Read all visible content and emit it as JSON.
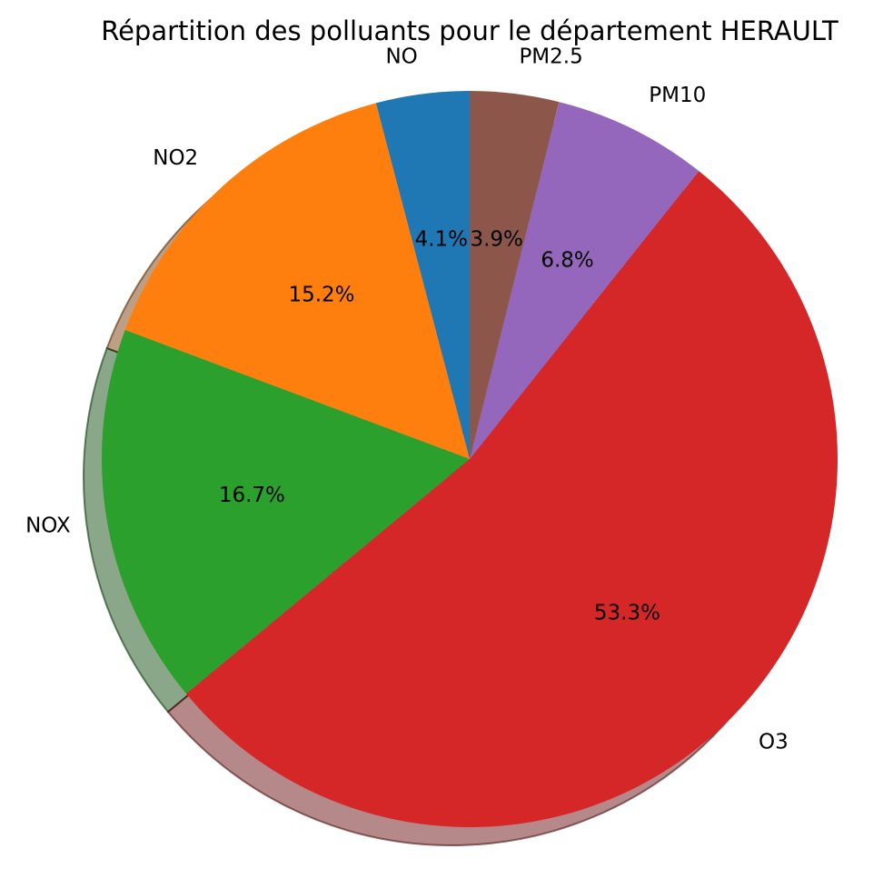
{
  "chart_data": {
    "type": "pie",
    "title": "Répartition des polluants pour le département HERAULT",
    "categories": [
      "NO",
      "NO2",
      "NOX",
      "O3",
      "PM10",
      "PM2.5"
    ],
    "values": [
      4.1,
      15.2,
      16.7,
      53.3,
      6.8,
      3.9
    ],
    "value_labels": [
      "4.1%",
      "15.2%",
      "16.7%",
      "53.3%",
      "6.8%",
      "3.9%"
    ],
    "colors": [
      "#1f77b4",
      "#ff7f0e",
      "#2ca02c",
      "#d62728",
      "#9467bd",
      "#8c564b"
    ],
    "start_angle_deg": 90,
    "direction": "counterclockwise",
    "shadow": true
  }
}
